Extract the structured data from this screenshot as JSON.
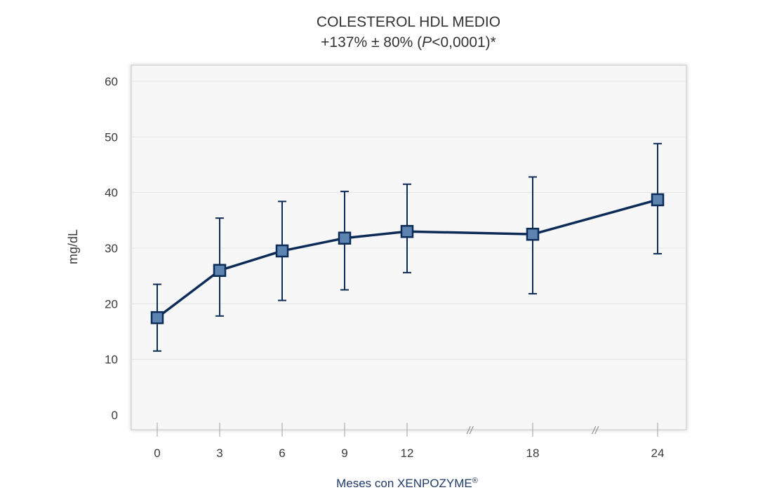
{
  "chart_data": {
    "type": "line",
    "title": "COLESTEROL HDL MEDIO",
    "subtitle_parts": [
      "+137% ± 80% (",
      "P",
      "<0,0001)*"
    ],
    "xlabel": "Meses con XENPOZYME",
    "xlabel_mark": "®",
    "ylabel": "mg/dL",
    "ylim": [
      0,
      60
    ],
    "yticks": [
      0,
      10,
      20,
      30,
      40,
      50,
      60
    ],
    "x_tick_labels": [
      "0",
      "3",
      "6",
      "9",
      "12",
      "18",
      "24"
    ],
    "axis_break_symbol": "//",
    "axis_breaks_after": [
      "12",
      "18"
    ],
    "grid": true,
    "series": [
      {
        "x": [
          "0",
          "3",
          "6",
          "9",
          "12",
          "18",
          "24"
        ],
        "values": [
          17.5,
          26,
          29.5,
          31.8,
          33,
          32.5,
          38.7
        ],
        "error_low": [
          11.5,
          17.8,
          20.6,
          22.5,
          25.6,
          21.8,
          29
        ],
        "error_high": [
          23.5,
          35.4,
          38.4,
          40.2,
          41.5,
          42.8,
          48.8
        ]
      }
    ],
    "colors": {
      "line": "#0d2b57",
      "marker_fill": "#5d84b0",
      "plot_bg": "#f7f7f7",
      "grid": "#e3e3e3",
      "frame": "#d4d4d4",
      "xlabel": "#1f3a66"
    }
  }
}
